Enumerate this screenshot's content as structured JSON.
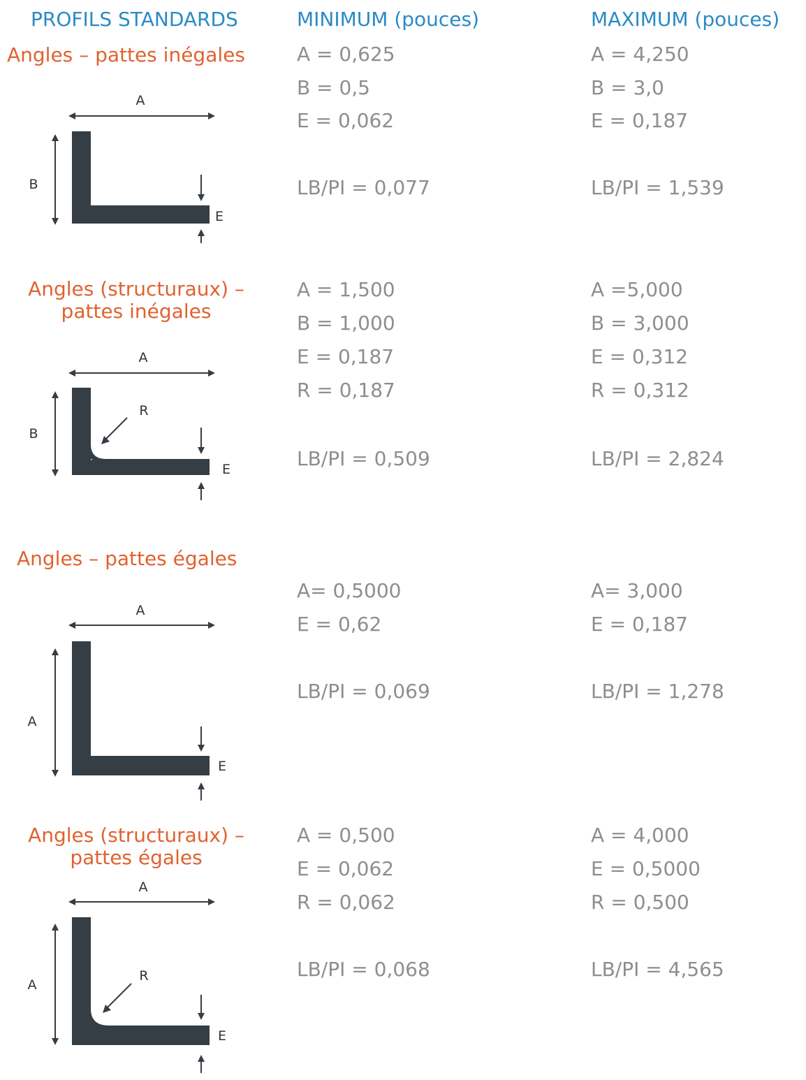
{
  "header": {
    "col_profiles": "PROFILS STANDARDS",
    "col_min": "MINIMUM (pouces)",
    "col_max": "MAXIMUM (pouces)"
  },
  "profiles": [
    {
      "title_lines": [
        "Angles – pattes inégales"
      ],
      "min": [
        "A = 0,625",
        "B = 0,5",
        "E = 0,062",
        "LB/PI = 0,077"
      ],
      "max": [
        "A = 4,250",
        "B = 3,0",
        "E = 0,187",
        "LB/PI = 1,539"
      ],
      "diagram": {
        "dim_top": "A",
        "dim_left": "B",
        "dim_thickness": "E"
      }
    },
    {
      "title_lines": [
        "Angles (structuraux) –",
        "pattes inégales"
      ],
      "min": [
        "A = 1,500",
        "B = 1,000",
        "E = 0,187",
        "R = 0,187",
        "LB/PI = 0,509"
      ],
      "max": [
        "A =5,000",
        "B = 3,000",
        "E = 0,312",
        "R = 0,312",
        "LB/PI = 2,824"
      ],
      "diagram": {
        "dim_top": "A",
        "dim_left": "B",
        "dim_thickness": "E",
        "dim_radius": "R"
      }
    },
    {
      "title_lines": [
        "Angles – pattes égales"
      ],
      "min": [
        "A= 0,5000",
        "E = 0,62",
        "LB/PI = 0,069"
      ],
      "max": [
        "A= 3,000",
        "E = 0,187",
        "LB/PI = 1,278"
      ],
      "diagram": {
        "dim_top": "A",
        "dim_left": "A",
        "dim_thickness": "E"
      }
    },
    {
      "title_lines": [
        "Angles (structuraux) –",
        "pattes égales"
      ],
      "min": [
        "A = 0,500",
        "E = 0,062",
        "R = 0,062",
        "LB/PI = 0,068"
      ],
      "max": [
        "A = 4,000",
        "E = 0,5000",
        "R = 0,500",
        "LB/PI = 4,565"
      ],
      "diagram": {
        "dim_top": "A",
        "dim_left": "A",
        "dim_thickness": "E",
        "dim_radius": "R"
      }
    }
  ],
  "colors": {
    "header": "#2b8ac6",
    "title": "#e0622f",
    "value": "#8e8e8e",
    "shape": "#353d45"
  }
}
